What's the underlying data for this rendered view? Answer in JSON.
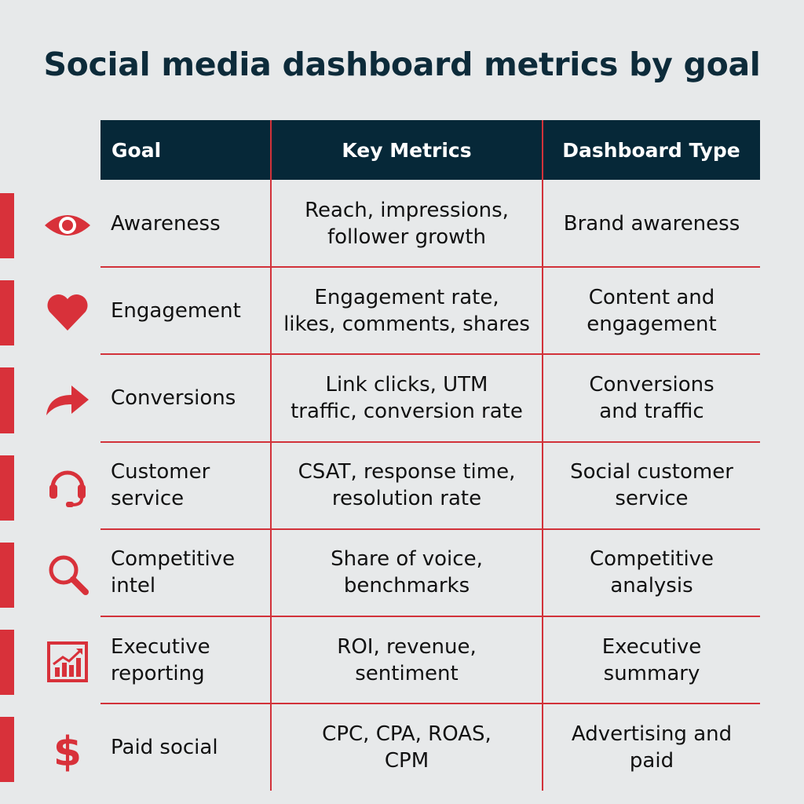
{
  "title": "Social media dashboard metrics by goal",
  "table": {
    "headers": {
      "goal": "Goal",
      "metrics": "Key Metrics",
      "type": "Dashboard Type"
    },
    "rows": [
      {
        "icon": "eye-icon",
        "goal": [
          "Awareness"
        ],
        "metrics": [
          "Reach, impressions,",
          "follower growth"
        ],
        "type": [
          "Brand awareness"
        ]
      },
      {
        "icon": "heart-icon",
        "goal": [
          "Engagement"
        ],
        "metrics": [
          "Engagement rate,",
          "likes, comments, shares"
        ],
        "type": [
          "Content and",
          "engagement"
        ]
      },
      {
        "icon": "share-arrow-icon",
        "goal": [
          "Conversions"
        ],
        "metrics": [
          "Link clicks, UTM",
          "traffic, conversion rate"
        ],
        "type": [
          "Conversions",
          "and traffic"
        ]
      },
      {
        "icon": "headset-icon",
        "goal": [
          "Customer",
          "service"
        ],
        "metrics": [
          "CSAT, response time,",
          "resolution rate"
        ],
        "type": [
          "Social customer",
          "service"
        ]
      },
      {
        "icon": "magnifier-icon",
        "goal": [
          "Competitive",
          "intel"
        ],
        "metrics": [
          "Share of voice,",
          "benchmarks"
        ],
        "type": [
          "Competitive",
          "analysis"
        ]
      },
      {
        "icon": "growth-chart-icon",
        "goal": [
          "Executive",
          "reporting"
        ],
        "metrics": [
          "ROI, revenue,",
          "sentiment"
        ],
        "type": [
          "Executive",
          "summary"
        ]
      },
      {
        "icon": "dollar-icon",
        "goal": [
          "Paid social"
        ],
        "metrics": [
          "CPC, CPA, ROAS,",
          "CPM"
        ],
        "type": [
          "Advertising and",
          "paid"
        ]
      }
    ]
  },
  "colors": {
    "accent": "#d8313a",
    "header_bg": "#062838",
    "title": "#0d2b3a",
    "background": "#e7e9ea"
  }
}
